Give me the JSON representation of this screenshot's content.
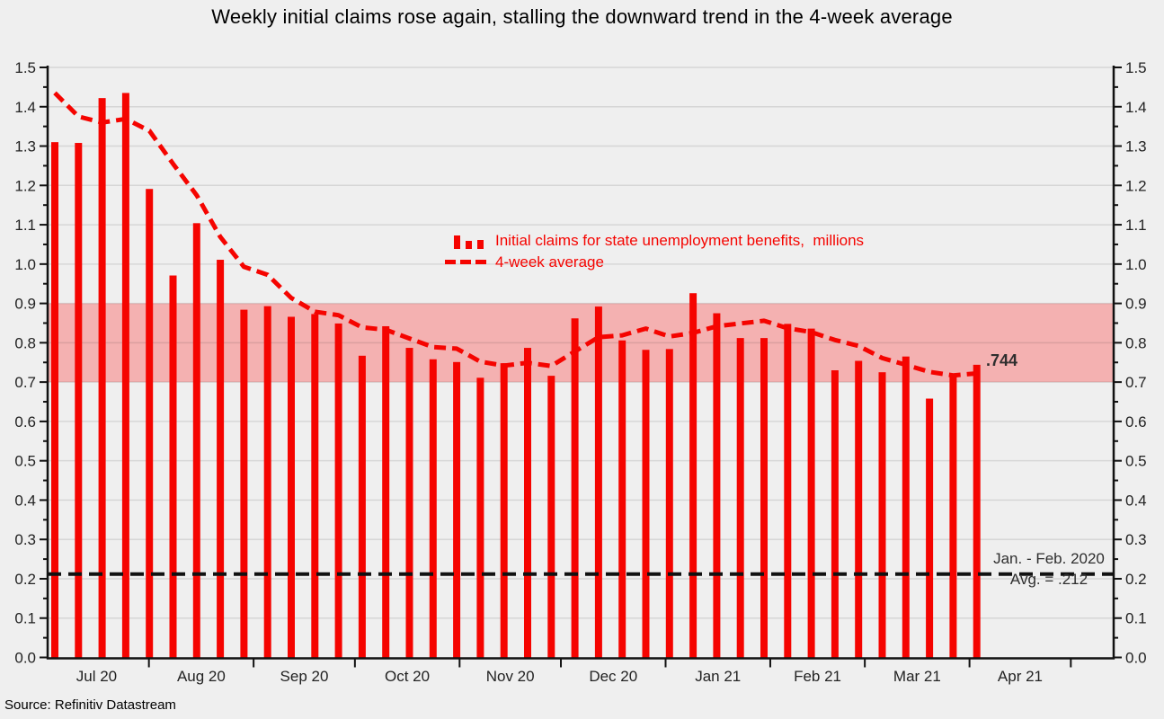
{
  "title": "Weekly initial claims rose again, stalling the downward trend in the 4-week average",
  "source": "Source: Refinitiv Datastream",
  "colors": {
    "background": "#efefef",
    "series_red": "#f50400",
    "band_pink": "#f4b1b1",
    "reference_line_black": "#111111",
    "annotation_gray": "#2e2e2e"
  },
  "legend": [
    {
      "label": "Initial claims for state unemployment benefits,  millions",
      "marker": "red-bars"
    },
    {
      "label": "4-week average",
      "marker": "red-dashes"
    }
  ],
  "annotations": {
    "last_value_label": ".744",
    "baseline_line1": "Jan. - Feb. 2020",
    "baseline_line2": "Avg. = .212"
  },
  "chart_data": {
    "type": "bar",
    "title": "Weekly initial claims rose again, stalling the downward trend in the 4-week average",
    "xlabel": "",
    "ylabel": "millions",
    "ylim": [
      0.0,
      1.5
    ],
    "y_major_step": 0.1,
    "y_minor_step": 0.05,
    "y_tick_labels": [
      "0.0",
      "0.1",
      "0.2",
      "0.3",
      "0.4",
      "0.5",
      "0.6",
      "0.7",
      "0.8",
      "0.9",
      "1.0",
      "1.1",
      "1.2",
      "1.3",
      "1.4",
      "1.5"
    ],
    "y_axis_sides": "both",
    "grid": true,
    "legend_position": "inside-top-center",
    "band": {
      "from": 0.7,
      "to": 0.9
    },
    "reference_line": {
      "value": 0.212,
      "label": "Jan. - Feb. 2020 Avg. = .212",
      "style": "black dashed"
    },
    "x_month_labels": [
      "Jul 20",
      "Aug 20",
      "Sep 20",
      "Oct 20",
      "Nov 20",
      "Dec 20",
      "Jan 21",
      "Feb 21",
      "Mar 21",
      "Apr 21"
    ],
    "x_weeks": [
      "2020-07-04",
      "2020-07-11",
      "2020-07-18",
      "2020-07-25",
      "2020-08-01",
      "2020-08-08",
      "2020-08-15",
      "2020-08-22",
      "2020-08-29",
      "2020-09-05",
      "2020-09-12",
      "2020-09-19",
      "2020-09-26",
      "2020-10-03",
      "2020-10-10",
      "2020-10-17",
      "2020-10-24",
      "2020-10-31",
      "2020-11-07",
      "2020-11-14",
      "2020-11-21",
      "2020-11-28",
      "2020-12-05",
      "2020-12-12",
      "2020-12-19",
      "2020-12-26",
      "2021-01-02",
      "2021-01-09",
      "2021-01-16",
      "2021-01-23",
      "2021-01-30",
      "2021-02-06",
      "2021-02-13",
      "2021-02-20",
      "2021-02-27",
      "2021-03-06",
      "2021-03-13",
      "2021-03-20",
      "2021-03-27",
      "2021-04-03"
    ],
    "series": [
      {
        "name": "Initial claims for state unemployment benefits, millions",
        "type": "bar",
        "values": [
          1.31,
          1.308,
          1.422,
          1.435,
          1.191,
          0.971,
          1.104,
          1.011,
          0.884,
          0.893,
          0.866,
          0.873,
          0.849,
          0.767,
          0.842,
          0.787,
          0.758,
          0.751,
          0.711,
          0.748,
          0.787,
          0.716,
          0.862,
          0.892,
          0.806,
          0.782,
          0.784,
          0.926,
          0.875,
          0.812,
          0.812,
          0.848,
          0.836,
          0.73,
          0.754,
          0.725,
          0.765,
          0.658,
          0.719,
          0.744
        ]
      },
      {
        "name": "4-week average",
        "type": "line",
        "values": [
          1.435,
          1.375,
          1.36,
          1.369,
          1.339,
          1.255,
          1.175,
          1.069,
          0.993,
          0.973,
          0.914,
          0.879,
          0.87,
          0.839,
          0.833,
          0.811,
          0.789,
          0.785,
          0.752,
          0.742,
          0.749,
          0.741,
          0.778,
          0.814,
          0.819,
          0.836,
          0.816,
          0.825,
          0.842,
          0.849,
          0.856,
          0.837,
          0.827,
          0.807,
          0.792,
          0.761,
          0.744,
          0.726,
          0.717,
          0.722
        ]
      }
    ]
  }
}
